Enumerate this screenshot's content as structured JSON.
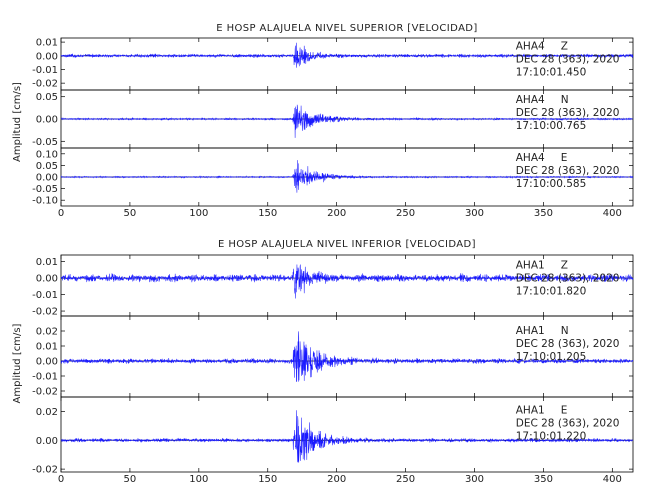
{
  "chart_data": [
    {
      "type": "line",
      "title": "E HOSP ALAJUELA NIVEL SUPERIOR [VELOCIDAD]",
      "ylabel": "Amplitud [cm/s]",
      "xlim": [
        0,
        415
      ],
      "x_ticks": [
        "0",
        "50",
        "100",
        "150",
        "200",
        "250",
        "300",
        "350",
        "400"
      ],
      "event_time_s": 170,
      "panels": [
        {
          "station": "AHA4",
          "component": "Z",
          "date": "DEC 28 (363), 2020",
          "start_time": "17:10:01.450",
          "ylim": [
            -0.025,
            0.013
          ],
          "y_ticks": [
            "0.01",
            "0.00",
            "-0.01",
            "-0.02"
          ],
          "y_tick_values": [
            0.01,
            0.0,
            -0.01,
            -0.02
          ],
          "peak_amplitude": 0.012,
          "noise_amplitude": 0.0012
        },
        {
          "station": "AHA4",
          "component": "N",
          "date": "DEC 28 (363), 2020",
          "start_time": "17:10:00.765",
          "ylim": [
            -0.065,
            0.065
          ],
          "y_ticks": [
            "0.05",
            "0.00",
            "-0.05"
          ],
          "y_tick_values": [
            0.05,
            0.0,
            -0.05
          ],
          "peak_amplitude": 0.05,
          "noise_amplitude": 0.002
        },
        {
          "station": "AHA4",
          "component": "E",
          "date": "DEC 28 (363), 2020",
          "start_time": "17:10:00.585",
          "ylim": [
            -0.125,
            0.125
          ],
          "y_ticks": [
            "0.10",
            "0.05",
            "0.00",
            "-0.05",
            "-0.10"
          ],
          "y_tick_values": [
            0.1,
            0.05,
            0.0,
            -0.05,
            -0.1
          ],
          "peak_amplitude": 0.09,
          "noise_amplitude": 0.003
        }
      ]
    },
    {
      "type": "line",
      "title": "E HOSP ALAJUELA NIVEL INFERIOR [VELOCIDAD]",
      "ylabel": "Amplitud [cm/s]",
      "xlim": [
        0,
        415
      ],
      "x_ticks": [
        "0",
        "50",
        "100",
        "150",
        "200",
        "250",
        "300",
        "350",
        "400"
      ],
      "event_time_s": 170,
      "panels": [
        {
          "station": "AHA1",
          "component": "Z",
          "date": "DEC 28 (363), 2020",
          "start_time": "17:10:01.820",
          "ylim": [
            -0.023,
            0.014
          ],
          "y_ticks": [
            "0.01",
            "0.00",
            "-0.01",
            "-0.02"
          ],
          "y_tick_values": [
            0.01,
            0.0,
            -0.01,
            -0.02
          ],
          "peak_amplitude": 0.013,
          "noise_amplitude": 0.0022
        },
        {
          "station": "AHA1",
          "component": "N",
          "date": "DEC 28 (363), 2020",
          "start_time": "17:10:01.205",
          "ylim": [
            -0.024,
            0.03
          ],
          "y_ticks": [
            "0.02",
            "0.01",
            "0.00",
            "-0.01",
            "-0.02"
          ],
          "y_tick_values": [
            0.02,
            0.01,
            0.0,
            -0.01,
            -0.02
          ],
          "peak_amplitude": 0.024,
          "noise_amplitude": 0.0015
        },
        {
          "station": "AHA1",
          "component": "E",
          "date": "DEC 28 (363), 2020",
          "start_time": "17:10:01.220",
          "ylim": [
            -0.022,
            0.03
          ],
          "y_ticks": [
            "0.02",
            "0.00",
            "-0.02"
          ],
          "y_tick_values": [
            0.02,
            0.0,
            -0.02
          ],
          "peak_amplitude": 0.028,
          "noise_amplitude": 0.0012
        }
      ]
    }
  ]
}
